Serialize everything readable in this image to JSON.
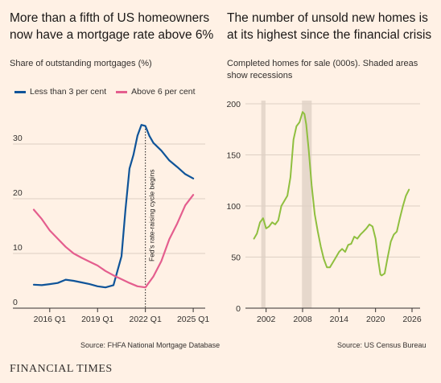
{
  "left": {
    "title_line1": "More than a fifth of US homeowners",
    "title_line2": "now have a mortgage rate above 6%",
    "subtitle": "Share of outstanding mortgages (%)",
    "source": "Source: FHFA National Mortgage Database"
  },
  "right": {
    "title_line1": "The number of unsold new homes is",
    "title_line2": "at its highest since the financial crisis",
    "subtitle_line1": "Completed homes for sale (000s). Shaded areas",
    "subtitle_line2": "show recessions",
    "source": "Source: US Census Bureau"
  },
  "brand": "FINANCIAL TIMES",
  "colors": {
    "background": "#fff1e5",
    "blue": "#0f5499",
    "pink": "#e45e8e",
    "green": "#8fbf3f",
    "recession": "#e6d8cc"
  },
  "chart_data": [
    {
      "type": "line",
      "title": "More than a fifth of US homeowners now have a mortgage rate above 6%",
      "subtitle": "Share of outstanding mortgages (%)",
      "ylim": [
        0,
        35
      ],
      "yticks": [
        0,
        10,
        20,
        30
      ],
      "xlim": [
        2015.0,
        2025.5
      ],
      "xticks": [
        2016,
        2019,
        2022,
        2025
      ],
      "xtick_labels": [
        "2016 Q1",
        "2019 Q1",
        "2022 Q1",
        "2025 Q1"
      ],
      "annotation": {
        "x": 2022,
        "text": "Fed's rate-raising cycle begins"
      },
      "series": [
        {
          "name": "Less than 3 per cent",
          "color": "#0f5499",
          "x": [
            2015.0,
            2015.5,
            2016.0,
            2016.5,
            2017.0,
            2017.5,
            2018.0,
            2018.5,
            2019.0,
            2019.5,
            2020.0,
            2020.5,
            2020.75,
            2021.0,
            2021.25,
            2021.5,
            2021.75,
            2022.0,
            2022.25,
            2022.5,
            2023.0,
            2023.5,
            2024.0,
            2024.5,
            2025.0
          ],
          "y": [
            4.3,
            4.2,
            4.4,
            4.6,
            5.2,
            5.0,
            4.7,
            4.4,
            4.0,
            3.8,
            4.2,
            9.5,
            18.0,
            25.5,
            28.0,
            31.5,
            33.5,
            33.3,
            31.5,
            30.2,
            28.8,
            27.0,
            25.8,
            24.5,
            23.7
          ]
        },
        {
          "name": "Above 6 per cent",
          "color": "#e45e8e",
          "x": [
            2015.0,
            2015.5,
            2016.0,
            2016.5,
            2017.0,
            2017.5,
            2018.0,
            2018.5,
            2019.0,
            2019.5,
            2020.0,
            2020.5,
            2021.0,
            2021.5,
            2022.0,
            2022.5,
            2023.0,
            2023.5,
            2024.0,
            2024.5,
            2025.0
          ],
          "y": [
            18.0,
            16.3,
            14.2,
            12.7,
            11.2,
            10.0,
            9.2,
            8.5,
            7.8,
            6.8,
            6.0,
            5.3,
            4.6,
            4.0,
            3.8,
            5.8,
            8.6,
            12.6,
            15.5,
            18.8,
            20.7
          ]
        }
      ]
    },
    {
      "type": "line",
      "title": "The number of unsold new homes is at its highest since the financial crisis",
      "subtitle": "Completed homes for sale (000s). Shaded areas show recessions",
      "ylim": [
        0,
        200
      ],
      "yticks": [
        0,
        50,
        100,
        150,
        200
      ],
      "xlim": [
        1999.0,
        2026.0
      ],
      "xticks": [
        2002,
        2008,
        2014,
        2020,
        2026
      ],
      "recessions": [
        [
          2001.2,
          2001.9
        ],
        [
          2007.9,
          2009.5
        ]
      ],
      "series": [
        {
          "color": "#8fbf3f",
          "x": [
            2000.0,
            2000.5,
            2001.0,
            2001.5,
            2002.0,
            2002.5,
            2003.0,
            2003.5,
            2004.0,
            2004.5,
            2005.0,
            2005.5,
            2006.0,
            2006.5,
            2007.0,
            2007.5,
            2008.0,
            2008.3,
            2008.6,
            2009.0,
            2009.5,
            2010.0,
            2010.5,
            2011.0,
            2011.5,
            2012.0,
            2012.5,
            2013.0,
            2013.5,
            2014.0,
            2014.5,
            2015.0,
            2015.5,
            2016.0,
            2016.5,
            2017.0,
            2017.5,
            2018.0,
            2018.5,
            2019.0,
            2019.5,
            2020.0,
            2020.5,
            2020.8,
            2021.0,
            2021.5,
            2022.0,
            2022.5,
            2023.0,
            2023.5,
            2024.0,
            2024.5,
            2025.0,
            2025.5
          ],
          "y": [
            68,
            73,
            84,
            88,
            78,
            80,
            84,
            82,
            86,
            100,
            105,
            110,
            128,
            165,
            178,
            182,
            192,
            190,
            180,
            155,
            120,
            92,
            75,
            60,
            48,
            40,
            40,
            45,
            50,
            55,
            58,
            55,
            62,
            63,
            70,
            68,
            72,
            75,
            78,
            82,
            80,
            68,
            45,
            33,
            32,
            34,
            50,
            65,
            72,
            75,
            88,
            100,
            110,
            116
          ]
        }
      ]
    }
  ]
}
